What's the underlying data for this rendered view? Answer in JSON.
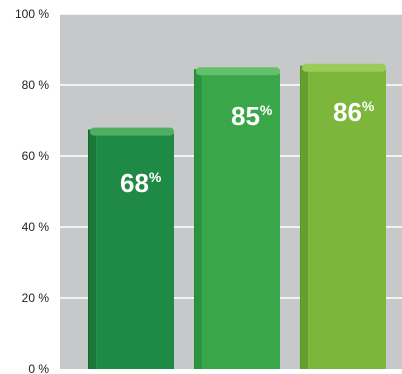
{
  "chart_data": {
    "type": "bar",
    "categories": [
      "",
      "",
      ""
    ],
    "values": [
      68,
      85,
      86
    ],
    "value_labels": [
      "68",
      "85",
      "86"
    ],
    "value_suffix": "%",
    "y_tick_labels": [
      "0 %",
      "20 %",
      "40 %",
      "60 %",
      "80 %",
      "100 %"
    ],
    "y_ticks": [
      0,
      20,
      40,
      60,
      80,
      100
    ],
    "ylim": [
      0,
      100
    ],
    "grid": true,
    "legend": "none",
    "title": "",
    "xlabel": "",
    "ylabel": "",
    "colors": {
      "plot_background": "#c6c8ca",
      "gridline": "#ffffff",
      "bar_fills": [
        "#1f8a45",
        "#3aa64a",
        "#7cb63a"
      ],
      "bar_tops": [
        "#4eb060",
        "#62c06a",
        "#9ccc58"
      ],
      "bar_sides": [
        "#0f6a30",
        "#1f8a37",
        "#569526"
      ]
    }
  }
}
